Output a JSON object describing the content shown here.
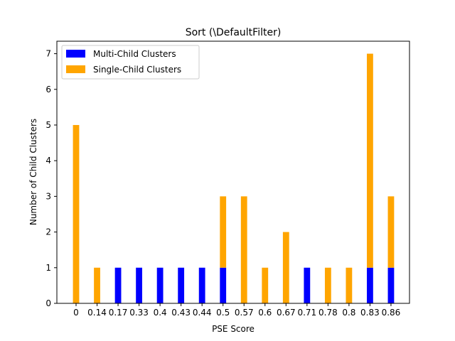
{
  "chart_data": {
    "type": "bar",
    "stacked": true,
    "title": "Sort (\\DefaultFilter)",
    "xlabel": "PSE Score",
    "ylabel": "Number of Child Clusters",
    "categories": [
      "0",
      "0.14",
      "0.17",
      "0.33",
      "0.4",
      "0.43",
      "0.44",
      "0.5",
      "0.57",
      "0.6",
      "0.67",
      "0.71",
      "0.78",
      "0.8",
      "0.83",
      "0.86"
    ],
    "series": [
      {
        "name": "Multi-Child Clusters",
        "color": "#0000ff",
        "values": [
          0,
          0,
          1,
          1,
          1,
          1,
          1,
          1,
          0,
          0,
          0,
          1,
          0,
          0,
          1,
          1
        ]
      },
      {
        "name": "Single-Child Clusters",
        "color": "#ffa500",
        "values": [
          5,
          1,
          0,
          0,
          0,
          0,
          0,
          2,
          3,
          1,
          2,
          0,
          1,
          1,
          6,
          2
        ]
      }
    ],
    "ylim": [
      0,
      7.35
    ],
    "yticks": [
      0,
      1,
      2,
      3,
      4,
      5,
      6,
      7
    ],
    "legend_position": "top-left",
    "grid": false
  }
}
